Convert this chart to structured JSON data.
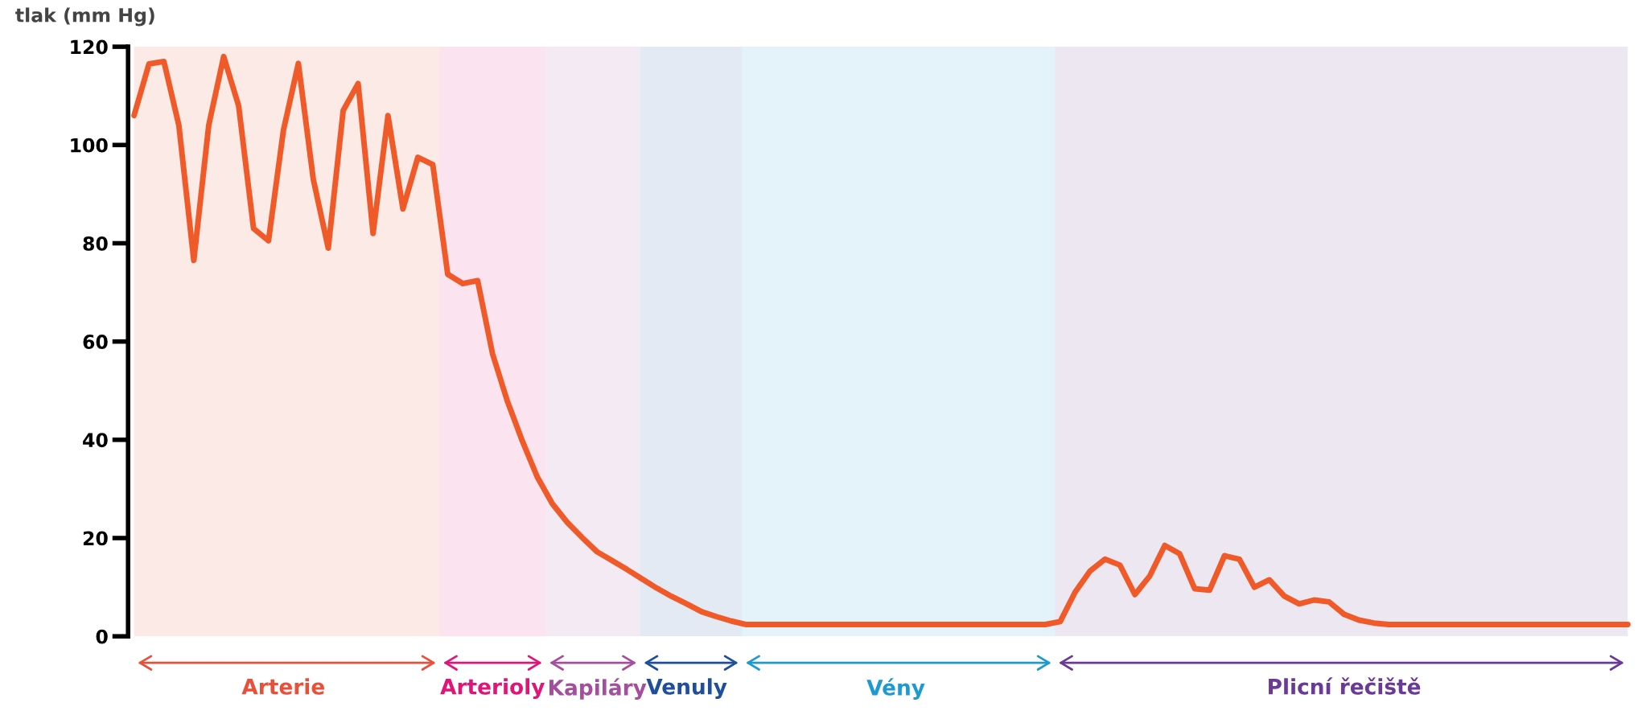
{
  "chart_data": {
    "type": "line",
    "ylabel": "tlak (mm Hg)",
    "categories": [
      null,
      null,
      null,
      null,
      null,
      null,
      null,
      null,
      null,
      null,
      "Arterie",
      null,
      null,
      null,
      null,
      null,
      null,
      null,
      null,
      null,
      null,
      null,
      null,
      null,
      "Arterioly",
      null,
      null,
      null,
      null,
      null,
      null,
      "Kapiláry",
      null,
      null,
      null,
      null,
      null,
      "Venuly",
      null,
      null,
      null,
      null,
      null,
      null,
      null,
      null,
      null,
      null,
      null,
      null,
      null,
      "Vény",
      null,
      null,
      null,
      null,
      null,
      null,
      null,
      null,
      null,
      null,
      null,
      null,
      null,
      null,
      null,
      null,
      null,
      null,
      null,
      null,
      null,
      null,
      null,
      null,
      null,
      null,
      null,
      null,
      null,
      "Plicní řečiště",
      null,
      null,
      null,
      null,
      null,
      null,
      null,
      null,
      null,
      null,
      null,
      null,
      null,
      null,
      null,
      null,
      null,
      null,
      null
    ],
    "ylim": [
      0,
      120
    ],
    "yticks": [
      0,
      20,
      40,
      60,
      80,
      100,
      120
    ],
    "tick_labels": "y",
    "grid": false,
    "marker": "none",
    "line_style": "solid",
    "series": [
      {
        "color": "#f05a28",
        "values": [
          106,
          116.5,
          117,
          104,
          76.5,
          104,
          118,
          108,
          83,
          80.5,
          103,
          116.6,
          93,
          79,
          107,
          112.5,
          82,
          106,
          87,
          97.5,
          96,
          73.7,
          71.8,
          72.4,
          57.5,
          47.8,
          39.7,
          32.4,
          27,
          23.2,
          20.1,
          17.2,
          15.4,
          13.6,
          11.7,
          9.8,
          8.1,
          6.6,
          5,
          4,
          3.1,
          2.4,
          2.4,
          2.4,
          2.4,
          2.4,
          2.4,
          2.4,
          2.4,
          2.4,
          2.4,
          2.4,
          2.4,
          2.4,
          2.4,
          2.4,
          2.4,
          2.4,
          2.4,
          2.4,
          2.4,
          2.4,
          3,
          9,
          13.3,
          15.7,
          14.5,
          8.5,
          12.3,
          18.5,
          16.8,
          9.7,
          9.4,
          16.4,
          15.7,
          10,
          11.5,
          8.2,
          6.6,
          7.4,
          7,
          4.5,
          3.3,
          2.7,
          2.4,
          2.4,
          2.4,
          2.4,
          2.4,
          2.4,
          2.4,
          2.4,
          2.4,
          2.4,
          2.4,
          2.4,
          2.4,
          2.4,
          2.4,
          2.4,
          2.4
        ]
      }
    ]
  }
}
